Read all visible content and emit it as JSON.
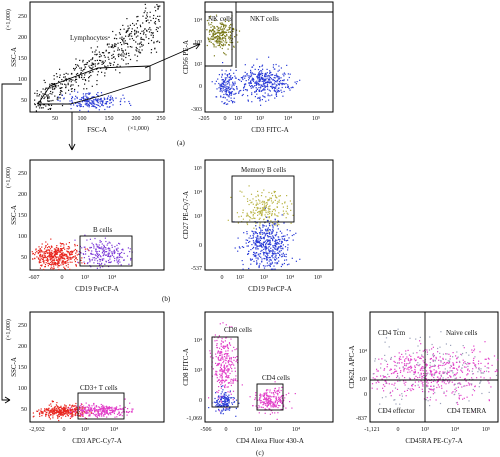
{
  "figure": {
    "panel_labels": [
      "(a)",
      "(b)",
      "(c)"
    ]
  },
  "chart_data": [
    {
      "id": "a1",
      "type": "scatter",
      "xlabel": "FSC-A",
      "ylabel": "SSC-A",
      "x_ticks": [
        "50",
        "100",
        "150",
        "200",
        "250"
      ],
      "y_ticks": [
        "50",
        "100",
        "150",
        "200",
        "250"
      ],
      "x_multiplier": "(×1,000)",
      "y_multiplier": "(×1,000)",
      "gates": [
        {
          "label": "Lymphocytes",
          "shape": "polygon"
        }
      ],
      "populations": [
        {
          "color": "#111111",
          "n": 520,
          "x_range": [
            20,
            250
          ],
          "y_range": [
            5,
            120
          ],
          "trend": "rising"
        },
        {
          "color": "#2a3bd6",
          "n": 200,
          "center": [
            90,
            25
          ],
          "spread": [
            18,
            7
          ]
        }
      ]
    },
    {
      "id": "a2",
      "type": "scatter",
      "xlabel": "CD3 FITC-A",
      "ylabel": "CD56 PE-A",
      "x_ticks": [
        "-205",
        "0",
        "10²",
        "10³",
        "10⁴",
        "10⁵"
      ],
      "y_ticks": [
        "-303",
        "0",
        "10²",
        "10³",
        "10⁴"
      ],
      "gates": [
        {
          "label": "NK cells"
        },
        {
          "label": "NKT cells"
        }
      ],
      "populations": [
        {
          "color": "#7a7a1a",
          "n": 260,
          "center": [
            "10¹",
            "10⁴"
          ]
        },
        {
          "color": "#2a3bd6",
          "n": 380,
          "center": [
            "10³",
            "10²"
          ]
        },
        {
          "color": "#2a3bd6",
          "n": 160,
          "center": [
            "0",
            "10²"
          ]
        }
      ]
    },
    {
      "id": "b1",
      "type": "scatter",
      "xlabel": "CD19 PerCP-A",
      "ylabel": "SSC-A",
      "x_ticks": [
        "-607",
        "0",
        "10³",
        "10⁴"
      ],
      "y_ticks": [
        "50",
        "100",
        "150",
        "200",
        "250"
      ],
      "y_multiplier": "(×1,000)",
      "gates": [
        {
          "label": "B cells"
        }
      ],
      "populations": [
        {
          "color": "#e8261f",
          "n": 440,
          "center": [
            "0",
            "30"
          ]
        },
        {
          "color": "#7d3bd8",
          "n": 220,
          "center": [
            "10³",
            "30"
          ]
        }
      ]
    },
    {
      "id": "b2",
      "type": "scatter",
      "xlabel": "CD19 PerCP-A",
      "ylabel": "CD27 PE-Cy7-A",
      "x_ticks": [
        "0",
        "10²",
        "10³",
        "10⁴",
        "10⁵"
      ],
      "y_ticks": [
        "-537",
        "0",
        "10³",
        "10⁴",
        "10⁵"
      ],
      "gates": [
        {
          "label": "Memory B cells"
        }
      ],
      "populations": [
        {
          "color": "#b9b445",
          "n": 220,
          "center": [
            "10³",
            "10³"
          ]
        },
        {
          "color": "#2a3bd6",
          "n": 450,
          "center": [
            "10³",
            "0"
          ]
        }
      ]
    },
    {
      "id": "c1",
      "type": "scatter",
      "xlabel": "CD3 APC-Cy7-A",
      "ylabel": "SSC-A",
      "x_ticks": [
        "-2,932",
        "0",
        "10³",
        "10⁴"
      ],
      "y_ticks": [
        "50",
        "100",
        "150",
        "200",
        "250"
      ],
      "y_multiplier": "(×1,000)",
      "gates": [
        {
          "label": "CD3+ T cells"
        }
      ],
      "populations": [
        {
          "color": "#e8261f",
          "n": 360,
          "center": [
            "0",
            "20"
          ]
        },
        {
          "color": "#e23ec8",
          "n": 280,
          "center": [
            "10³",
            "20"
          ]
        }
      ]
    },
    {
      "id": "c2",
      "type": "scatter",
      "xlabel": "CD4 Alexa Fluor 430-A",
      "ylabel": "CD8 FITC-A",
      "x_ticks": [
        "-506",
        "0",
        "10³",
        "10⁴"
      ],
      "y_ticks": [
        "-1,069",
        "0",
        "10³",
        "10⁴"
      ],
      "gates": [
        {
          "label": "CD8 cells"
        },
        {
          "label": "CD4 cells"
        }
      ],
      "populations": [
        {
          "color": "#e23ec8",
          "n": 280,
          "center": [
            "0",
            "10⁴"
          ]
        },
        {
          "color": "#2a3bd6",
          "n": 140,
          "center": [
            "0",
            "0"
          ]
        },
        {
          "color": "#e23ec8",
          "n": 220,
          "center": [
            "10⁴",
            "0"
          ]
        }
      ]
    },
    {
      "id": "c3",
      "type": "scatter",
      "xlabel": "CD45RA PE-Cy7-A",
      "ylabel": "CD62L APC-A",
      "x_ticks": [
        "-1,121",
        "0",
        "10³",
        "10⁴",
        "10⁵"
      ],
      "y_ticks": [
        "-837",
        "0",
        "10³",
        "10⁴"
      ],
      "gates": [
        {
          "label": "CD4 Tcm"
        },
        {
          "label": "Naive cells"
        },
        {
          "label": "CD4 effector"
        },
        {
          "label": "CD4 TEMRA"
        }
      ],
      "populations": [
        {
          "color": "#e23ec8",
          "n": 520,
          "center": [
            "10³",
            "10³"
          ]
        },
        {
          "color": "#9aa0b8",
          "n": 200,
          "center": [
            "10³",
            "10³"
          ]
        }
      ]
    }
  ]
}
